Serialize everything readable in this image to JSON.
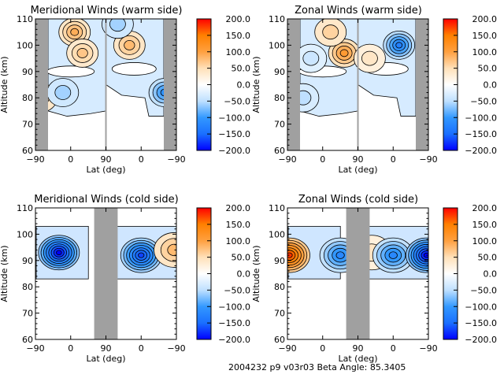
{
  "footer": {
    "text": "2004232 p9 v03r03   Beta Angle: 85.3405"
  },
  "colormap": {
    "stops": [
      "#0000ff",
      "#1a6fff",
      "#3399ff",
      "#bfe0ff",
      "#ffffff",
      "#ffe0b8",
      "#ffa040",
      "#ff8000",
      "#ff0000"
    ]
  },
  "mask_color": "#a0a0a0",
  "chart_data": [
    {
      "type": "heatmap",
      "id": "meridional-warm",
      "title": "Meridional Winds (warm side)",
      "xlabel": "Lat (deg)",
      "ylabel": "Altitude (km)",
      "x_tick_labels": [
        "-90",
        "0",
        "90",
        "0",
        "-90"
      ],
      "y_ticks": [
        60,
        70,
        80,
        90,
        100,
        110
      ],
      "ylim": [
        60,
        110
      ],
      "xlim_segments": [
        [
          -90,
          90
        ],
        [
          90,
          -90
        ]
      ],
      "colorbar": {
        "ticks": [
          "200.0",
          "150.0",
          "100.0",
          "50.0",
          "0.0",
          "-50.0",
          "-100.0",
          "-150.0",
          "-200.0"
        ],
        "range": [
          -200,
          200
        ]
      },
      "masked_lat_ranges": [
        [
          "-90",
          "-70"
        ],
        [
          "88",
          "90"
        ],
        [
          "-70",
          "-90"
        ]
      ],
      "features": [
        {
          "lat_segment": 1,
          "lat": -75,
          "alt": 80,
          "value": 60
        },
        {
          "lat_segment": 1,
          "lat": 10,
          "alt": 105,
          "value": 90
        },
        {
          "lat_segment": 1,
          "lat": 30,
          "alt": 97,
          "value": 70
        },
        {
          "lat_segment": 1,
          "lat": -20,
          "alt": 82,
          "value": -60
        },
        {
          "lat_segment": 2,
          "lat": 30,
          "alt": 100,
          "value": 80
        },
        {
          "lat_segment": 2,
          "lat": -60,
          "alt": 82,
          "value": -110
        },
        {
          "lat_segment": 2,
          "lat": 60,
          "alt": 108,
          "value": -60
        }
      ]
    },
    {
      "type": "heatmap",
      "id": "zonal-warm",
      "title": "Zonal Winds (warm side)",
      "xlabel": "Lat (deg)",
      "ylabel": "Altitude (km)",
      "x_tick_labels": [
        "-90",
        "0",
        "90",
        "0",
        "-90"
      ],
      "y_ticks": [
        60,
        70,
        80,
        90,
        100,
        110
      ],
      "ylim": [
        60,
        110
      ],
      "xlim_segments": [
        [
          -90,
          90
        ],
        [
          90,
          -90
        ]
      ],
      "colorbar": {
        "ticks": [
          "200.0",
          "150.0",
          "100.0",
          "50.0",
          "0.0",
          "-50.0",
          "-100.0",
          "-150.0",
          "-200.0"
        ],
        "range": [
          -200,
          200
        ]
      },
      "masked_lat_ranges": [
        [
          "-90",
          "-70"
        ],
        [
          "88",
          "90"
        ],
        [
          "-70",
          "-90"
        ]
      ],
      "features": [
        {
          "lat_segment": 1,
          "lat": 55,
          "alt": 97,
          "value": 110
        },
        {
          "lat_segment": 1,
          "lat": 20,
          "alt": 105,
          "value": 60
        },
        {
          "lat_segment": 1,
          "lat": -30,
          "alt": 95,
          "value": -40
        },
        {
          "lat_segment": 1,
          "lat": -50,
          "alt": 80,
          "value": -50
        },
        {
          "lat_segment": 2,
          "lat": -15,
          "alt": 100,
          "value": -130
        },
        {
          "lat_segment": 2,
          "lat": 60,
          "alt": 95,
          "value": 40
        }
      ]
    },
    {
      "type": "heatmap",
      "id": "meridional-cold",
      "title": "Meridional Winds (cold side)",
      "xlabel": "Lat (deg)",
      "ylabel": "Altitude (km)",
      "x_tick_labels": [
        "-90",
        "0",
        "90",
        "0",
        "-90"
      ],
      "y_ticks": [
        60,
        70,
        80,
        90,
        100,
        110
      ],
      "ylim": [
        60,
        110
      ],
      "xlim_segments": [
        [
          -90,
          90
        ],
        [
          90,
          -90
        ]
      ],
      "colorbar": {
        "ticks": [
          "200.0",
          "150.0",
          "100.0",
          "50.0",
          "0.0",
          "-50.0",
          "-100.0",
          "-150.0",
          "-200.0"
        ],
        "range": [
          -200,
          200
        ]
      },
      "masked_lat_ranges": [
        [
          "60",
          "90"
        ],
        [
          "90",
          "60"
        ]
      ],
      "data_alt_range": [
        83,
        103
      ],
      "features": [
        {
          "lat_segment": 1,
          "lat": -30,
          "alt": 93,
          "value": -200
        },
        {
          "lat_segment": 2,
          "lat": 0,
          "alt": 92,
          "value": -170
        },
        {
          "lat_segment": 2,
          "lat": -85,
          "alt": 94,
          "value": 80
        }
      ]
    },
    {
      "type": "heatmap",
      "id": "zonal-cold",
      "title": "Zonal Winds (cold side)",
      "xlabel": "Lat (deg)",
      "ylabel": "Altitude (km)",
      "x_tick_labels": [
        "-90",
        "0",
        "90",
        "0",
        "-90"
      ],
      "y_ticks": [
        60,
        70,
        80,
        90,
        100,
        110
      ],
      "ylim": [
        60,
        110
      ],
      "xlim_segments": [
        [
          -90,
          90
        ],
        [
          90,
          -90
        ]
      ],
      "colorbar": {
        "ticks": [
          "200.0",
          "150.0",
          "100.0",
          "50.0",
          "0.0",
          "-50.0",
          "-100.0",
          "-150.0",
          "-200.0"
        ],
        "range": [
          -200,
          200
        ]
      },
      "masked_lat_ranges": [
        [
          "60",
          "90"
        ],
        [
          "90",
          "60"
        ]
      ],
      "data_alt_range": [
        83,
        103
      ],
      "features": [
        {
          "lat_segment": 1,
          "lat": -85,
          "alt": 92,
          "value": 180
        },
        {
          "lat_segment": 1,
          "lat": 45,
          "alt": 92,
          "value": -120
        },
        {
          "lat_segment": 2,
          "lat": 55,
          "alt": 93,
          "value": 40
        },
        {
          "lat_segment": 2,
          "lat": 0,
          "alt": 92,
          "value": -120
        },
        {
          "lat_segment": 2,
          "lat": -85,
          "alt": 92,
          "value": -200
        }
      ]
    }
  ]
}
